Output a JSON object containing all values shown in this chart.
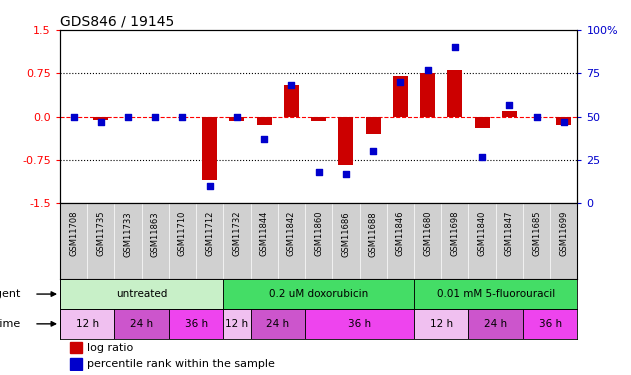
{
  "title": "GDS846 / 19145",
  "samples": [
    "GSM11708",
    "GSM11735",
    "GSM11733",
    "GSM11863",
    "GSM11710",
    "GSM11712",
    "GSM11732",
    "GSM11844",
    "GSM11842",
    "GSM11860",
    "GSM11686",
    "GSM11688",
    "GSM11846",
    "GSM11680",
    "GSM11698",
    "GSM11840",
    "GSM11847",
    "GSM11685",
    "GSM11699"
  ],
  "log_ratio": [
    0.0,
    -0.05,
    0.0,
    0.0,
    0.0,
    -1.1,
    -0.08,
    -0.15,
    0.55,
    -0.08,
    -0.83,
    -0.3,
    0.7,
    0.75,
    0.8,
    -0.2,
    0.1,
    0.0,
    -0.15
  ],
  "percentile": [
    50,
    47,
    50,
    50,
    50,
    10,
    50,
    37,
    68,
    18,
    17,
    30,
    70,
    77,
    90,
    27,
    57,
    50,
    47
  ],
  "ylim_left": [
    -1.5,
    1.5
  ],
  "ylim_right": [
    0,
    100
  ],
  "yticks_left": [
    -1.5,
    -0.75,
    0.0,
    0.75,
    1.5
  ],
  "yticks_right": [
    0,
    25,
    50,
    75,
    100
  ],
  "hline_dotted": [
    0.75,
    -0.75
  ],
  "hline_red_dashed": 0.0,
  "agents": [
    {
      "label": "untreated",
      "start": 0,
      "end": 6,
      "color": "#c8f0c8"
    },
    {
      "label": "0.2 uM doxorubicin",
      "start": 6,
      "end": 13,
      "color": "#44dd66"
    },
    {
      "label": "0.01 mM 5-fluorouracil",
      "start": 13,
      "end": 19,
      "color": "#44dd66"
    }
  ],
  "times": [
    {
      "label": "12 h",
      "start": 0,
      "end": 2,
      "color": "#f0c0f0"
    },
    {
      "label": "24 h",
      "start": 2,
      "end": 4,
      "color": "#cc55cc"
    },
    {
      "label": "36 h",
      "start": 4,
      "end": 6,
      "color": "#ee44ee"
    },
    {
      "label": "12 h",
      "start": 6,
      "end": 7,
      "color": "#f0c0f0"
    },
    {
      "label": "24 h",
      "start": 7,
      "end": 9,
      "color": "#cc55cc"
    },
    {
      "label": "36 h",
      "start": 9,
      "end": 13,
      "color": "#ee44ee"
    },
    {
      "label": "12 h",
      "start": 13,
      "end": 15,
      "color": "#f0c0f0"
    },
    {
      "label": "24 h",
      "start": 15,
      "end": 17,
      "color": "#cc55cc"
    },
    {
      "label": "36 h",
      "start": 17,
      "end": 19,
      "color": "#ee44ee"
    }
  ],
  "bar_color": "#cc0000",
  "dot_color": "#0000cc",
  "legend_bar_label": "log ratio",
  "legend_dot_label": "percentile rank within the sample",
  "xlabel_agent": "agent",
  "xlabel_time": "time",
  "bar_width": 0.55,
  "dot_size": 25,
  "sample_box_color": "#d0d0d0",
  "sample_box_edgecolor": "#888888"
}
